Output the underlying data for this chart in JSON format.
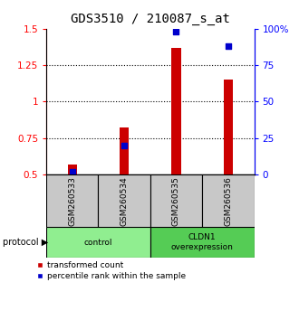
{
  "title": "GDS3510 / 210087_s_at",
  "samples": [
    "GSM260533",
    "GSM260534",
    "GSM260535",
    "GSM260536"
  ],
  "red_values": [
    0.57,
    0.82,
    1.37,
    1.15
  ],
  "blue_values": [
    2.0,
    20.0,
    98.0,
    88.0
  ],
  "ylim_left": [
    0.5,
    1.5
  ],
  "ylim_right": [
    0,
    100
  ],
  "yticks_left": [
    0.5,
    0.75,
    1.0,
    1.25,
    1.5
  ],
  "yticks_right": [
    0,
    25,
    50,
    75,
    100
  ],
  "ytick_labels_left": [
    "0.5",
    "0.75",
    "1",
    "1.25",
    "1.5"
  ],
  "ytick_labels_right": [
    "0",
    "25",
    "50",
    "75",
    "100%"
  ],
  "hlines": [
    0.75,
    1.0,
    1.25
  ],
  "groups": [
    {
      "label": "control",
      "indices": [
        0,
        1
      ],
      "color": "#90EE90"
    },
    {
      "label": "CLDN1\noverexpression",
      "indices": [
        2,
        3
      ],
      "color": "#55CC55"
    }
  ],
  "bar_color": "#CC0000",
  "dot_color": "#0000CC",
  "bar_width": 0.18,
  "dot_size": 25,
  "gray_bg": "#C8C8C8",
  "protocol_text": "protocol",
  "legend_red": "transformed count",
  "legend_blue": "percentile rank within the sample",
  "title_fontsize": 10,
  "tick_fontsize": 7.5,
  "label_fontsize": 7
}
